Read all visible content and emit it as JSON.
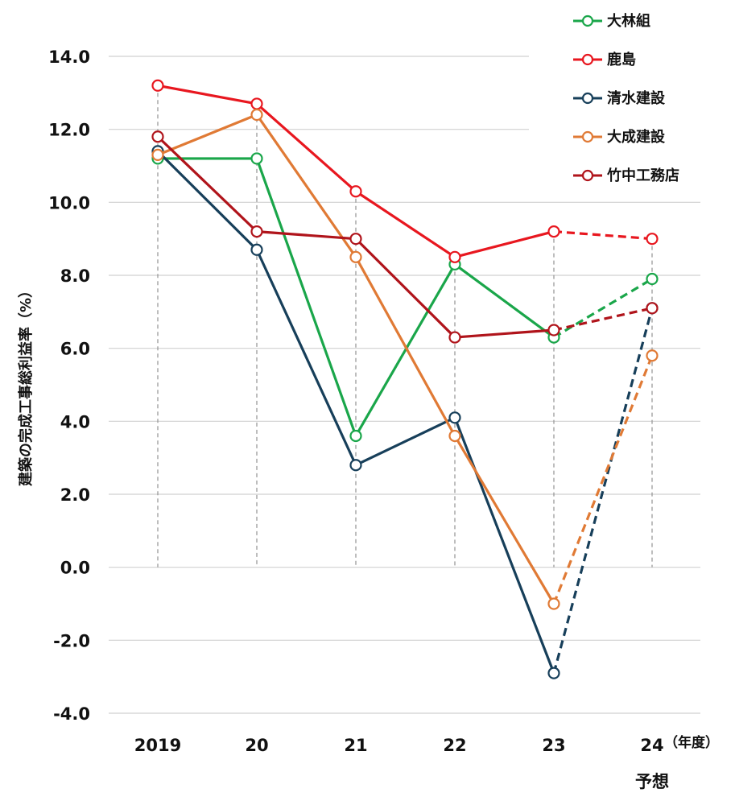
{
  "chart_data": {
    "type": "line",
    "x": [
      "2019",
      "20",
      "21",
      "22",
      "23",
      "24"
    ],
    "x_unit": "（年度）",
    "x_forecast_label": "予想",
    "ylabel": "建築の完成工事総利益率（%）",
    "ylim": [
      -4,
      14
    ],
    "yticks": [
      "-4.0",
      "-2.0",
      "0.0",
      "2.0",
      "4.0",
      "6.0",
      "8.0",
      "10.0",
      "12.0",
      "14.0"
    ],
    "grid": "horizontal",
    "legend_position": "top-right",
    "forecast_from_index": 4,
    "series": [
      {
        "name": "大林組",
        "color": "#1aa64a",
        "values": [
          11.2,
          11.2,
          3.6,
          8.3,
          6.3,
          7.9
        ]
      },
      {
        "name": "鹿島",
        "color": "#e8171f",
        "values": [
          13.2,
          12.7,
          10.3,
          8.5,
          9.2,
          9.0
        ]
      },
      {
        "name": "清水建設",
        "color": "#173f5a",
        "values": [
          11.4,
          8.7,
          2.8,
          4.1,
          -2.9,
          7.1
        ]
      },
      {
        "name": "大成建設",
        "color": "#e07a35",
        "values": [
          11.3,
          12.4,
          8.5,
          3.6,
          -1.0,
          5.8
        ]
      },
      {
        "name": "竹中工務店",
        "color": "#b0141b",
        "values": [
          11.8,
          9.2,
          9.0,
          6.3,
          6.5,
          7.1
        ]
      }
    ]
  }
}
